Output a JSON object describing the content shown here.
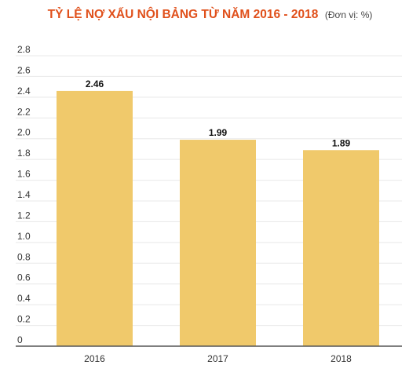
{
  "header": {
    "title": "TỶ LỆ NỢ XẤU NỘI BẢNG TỪ NĂM 2016 - 2018",
    "unit": "(Đơn vị: %)"
  },
  "chart_data": {
    "type": "bar",
    "title": "TỶ LỆ NỢ XẤU NỘI BẢNG TỪ NĂM 2016 - 2018",
    "subtitle": "(Đơn vị: %)",
    "categories": [
      "2016",
      "2017",
      "2018"
    ],
    "values": [
      2.46,
      1.99,
      1.89
    ],
    "data_labels": [
      "2.46",
      "1.99",
      "1.89"
    ],
    "yticks": [
      "0",
      "0.2",
      "0.4",
      "0.6",
      "0.8",
      "1.0",
      "1.2",
      "1.4",
      "1.6",
      "1.8",
      "2.0",
      "2.2",
      "2.4",
      "2.6",
      "2.8"
    ],
    "ylim": [
      0,
      2.8
    ],
    "grid": true,
    "legend": "none",
    "xlabel": "",
    "ylabel": "",
    "colors": {
      "bar": "#f0c96b",
      "title": "#e0501b"
    }
  }
}
